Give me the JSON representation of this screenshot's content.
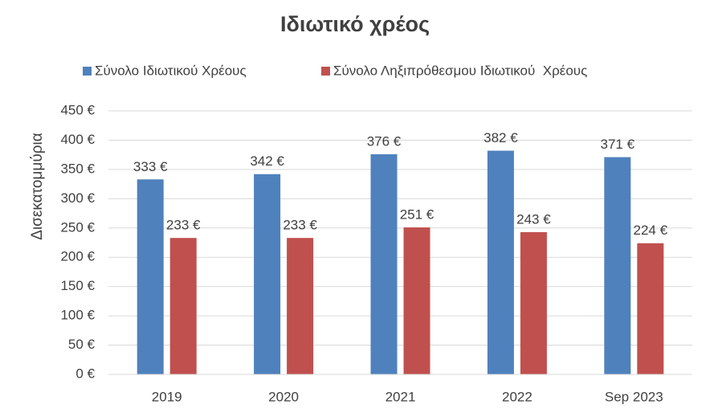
{
  "chart_data": {
    "type": "bar",
    "title": "Ιδιωτικό χρέος",
    "y_label": "Δισεκατομμύρια",
    "categories": [
      "2019",
      "2020",
      "2021",
      "2022",
      "Sep 2023"
    ],
    "series": [
      {
        "name": "Σύνολο Ιδιωτικού Χρέους",
        "color": "#4f81bd",
        "values": [
          333,
          342,
          376,
          382,
          371
        ],
        "value_labels": [
          "333 €",
          "342 €",
          "376 €",
          "382 €",
          "371 €"
        ]
      },
      {
        "name": "Σύνολο Ληξιπρόθεσμου Ιδιωτικού  Χρέους",
        "color": "#c0504d",
        "values": [
          233,
          233,
          251,
          243,
          224
        ],
        "value_labels": [
          "233 €",
          "233 €",
          "251 €",
          "243 €",
          "224 €"
        ]
      }
    ],
    "ylim": [
      0,
      450
    ],
    "yticks": [
      {
        "value": 0,
        "label": "0 €"
      },
      {
        "value": 50,
        "label": "50 €"
      },
      {
        "value": 100,
        "label": "100 €"
      },
      {
        "value": 150,
        "label": "150 €"
      },
      {
        "value": 200,
        "label": "200 €"
      },
      {
        "value": 250,
        "label": "250 €"
      },
      {
        "value": 300,
        "label": "300 €"
      },
      {
        "value": 350,
        "label": "350 €"
      },
      {
        "value": 400,
        "label": "400 €"
      },
      {
        "value": 450,
        "label": "450 €"
      }
    ],
    "grid": true,
    "legend": "top"
  }
}
